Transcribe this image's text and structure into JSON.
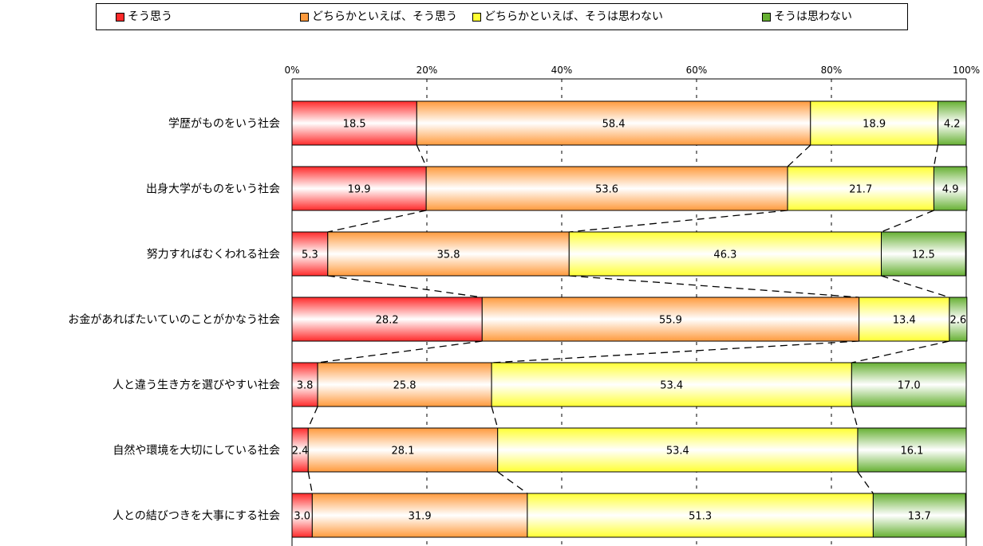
{
  "chart_data": {
    "type": "bar",
    "orientation": "horizontal",
    "stacked": true,
    "percent": true,
    "categories": [
      "学歴がものをいう社会",
      "出身大学がものをいう社会",
      "努力すればむくわれる社会",
      "お金があればたいていのことがかなう社会",
      "人と違う生き方を選びやすい社会",
      "自然や環境を大切にしている社会",
      "人との結びつきを大事にする社会"
    ],
    "series": [
      {
        "name": "そう思う",
        "values": [
          18.5,
          19.9,
          5.3,
          28.2,
          3.8,
          2.4,
          3.0
        ],
        "color": "#ff2a2a",
        "labels": [
          "18.5",
          "19.9",
          "5.3",
          "28.2",
          "3.8",
          "2.4",
          "3.0"
        ]
      },
      {
        "name": "どちらかといえば、そう思う",
        "values": [
          58.4,
          53.6,
          35.8,
          55.9,
          25.8,
          28.1,
          31.9
        ],
        "color": "#ff9a3c",
        "labels": [
          "58.4",
          "53.6",
          "35.8",
          "55.9",
          "25.8",
          "28.1",
          "31.9"
        ]
      },
      {
        "name": "どちらかといえば、そうは思わない",
        "values": [
          18.9,
          21.7,
          46.3,
          13.4,
          53.4,
          53.4,
          51.3
        ],
        "color": "#ffff33",
        "labels": [
          "18.9",
          "21.7",
          "46.3",
          "13.4",
          "53.4",
          "53.4",
          "51.3"
        ]
      },
      {
        "name": "そうは思わない",
        "values": [
          4.2,
          4.9,
          12.5,
          2.6,
          17.0,
          16.1,
          13.7
        ],
        "color": "#66b032",
        "labels": [
          "4.2",
          "4.9",
          "12.5",
          "2.6",
          "17.0",
          "16.1",
          "13.7"
        ]
      }
    ],
    "xlim": [
      0,
      100
    ],
    "xticks": [
      "0%",
      "20%",
      "40%",
      "60%",
      "80%",
      "100%"
    ],
    "grid": true,
    "legend_position": "top",
    "connector_lines": true
  }
}
